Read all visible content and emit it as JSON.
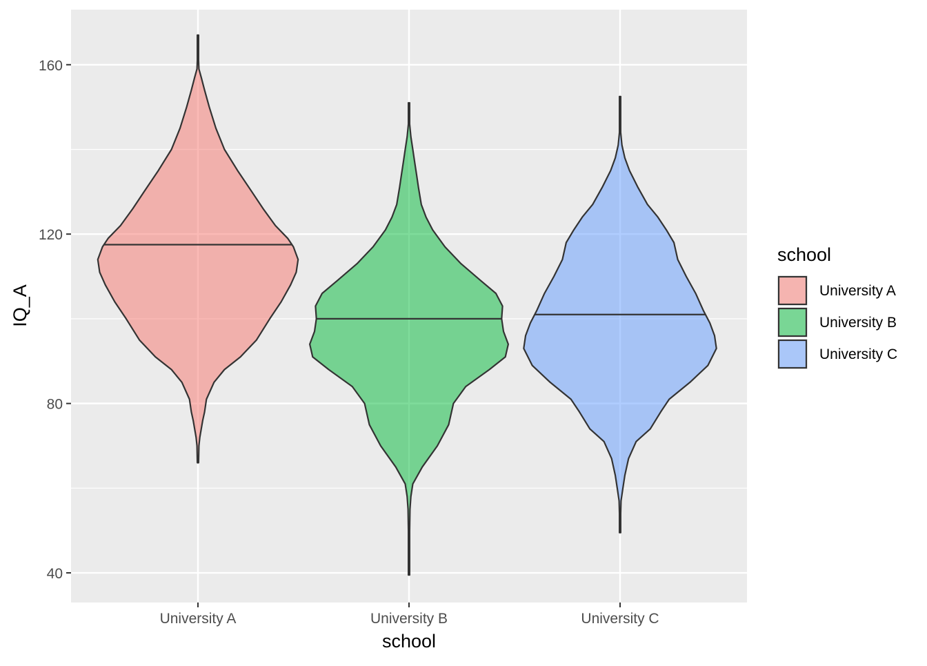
{
  "chart_data": {
    "type": "violin",
    "xlabel": "school",
    "ylabel": "IQ_A",
    "categories": [
      "University A",
      "University B",
      "University C"
    ],
    "ylim": [
      33,
      173
    ],
    "yticks": [
      40,
      80,
      120,
      160
    ],
    "grid": true,
    "legend": {
      "title": "school",
      "placement": "right",
      "entries": [
        "University A",
        "University B",
        "University C"
      ]
    },
    "colors": {
      "University A": "#F8766D",
      "University B": "#00BA38",
      "University C": "#619CFF"
    },
    "violins": [
      {
        "category": "University A",
        "median": 117.5,
        "min": 66,
        "max": 167,
        "profile": [
          [
            66,
            0.0
          ],
          [
            70,
            0.01
          ],
          [
            72,
            0.02
          ],
          [
            74,
            0.035
          ],
          [
            76,
            0.05
          ],
          [
            78,
            0.07
          ],
          [
            81,
            0.09
          ],
          [
            85,
            0.17
          ],
          [
            88,
            0.28
          ],
          [
            91,
            0.45
          ],
          [
            95,
            0.62
          ],
          [
            100,
            0.76
          ],
          [
            104,
            0.88
          ],
          [
            108,
            0.98
          ],
          [
            111,
            1.04
          ],
          [
            114,
            1.06
          ],
          [
            117,
            1.01
          ],
          [
            119,
            0.95
          ],
          [
            122,
            0.82
          ],
          [
            126,
            0.69
          ],
          [
            130,
            0.57
          ],
          [
            135,
            0.42
          ],
          [
            140,
            0.28
          ],
          [
            145,
            0.19
          ],
          [
            150,
            0.12
          ],
          [
            154,
            0.07
          ],
          [
            157,
            0.035
          ],
          [
            159,
            0.01
          ],
          [
            161,
            0.005
          ],
          [
            167,
            0.0
          ]
        ]
      },
      {
        "category": "University B",
        "median": 100,
        "min": 39.5,
        "max": 151,
        "profile": [
          [
            39.5,
            0.0
          ],
          [
            50,
            0.0
          ],
          [
            55,
            0.01
          ],
          [
            58,
            0.02
          ],
          [
            61,
            0.04
          ],
          [
            65,
            0.14
          ],
          [
            70,
            0.3
          ],
          [
            75,
            0.42
          ],
          [
            80,
            0.47
          ],
          [
            84,
            0.6
          ],
          [
            88,
            0.85
          ],
          [
            91,
            1.02
          ],
          [
            94,
            1.05
          ],
          [
            97,
            1.0
          ],
          [
            100,
            0.98
          ],
          [
            103,
            0.99
          ],
          [
            106,
            0.92
          ],
          [
            109,
            0.76
          ],
          [
            113,
            0.55
          ],
          [
            117,
            0.38
          ],
          [
            121,
            0.25
          ],
          [
            124,
            0.18
          ],
          [
            127,
            0.13
          ],
          [
            131,
            0.1
          ],
          [
            134,
            0.08
          ],
          [
            137,
            0.06
          ],
          [
            140,
            0.04
          ],
          [
            143,
            0.02
          ],
          [
            146,
            0.0
          ],
          [
            151,
            0.0
          ]
        ]
      },
      {
        "category": "University C",
        "median": 101,
        "min": 49.5,
        "max": 152.5,
        "profile": [
          [
            49.5,
            0.0
          ],
          [
            54,
            0.005
          ],
          [
            57,
            0.01
          ],
          [
            60,
            0.03
          ],
          [
            63,
            0.05
          ],
          [
            67,
            0.09
          ],
          [
            71,
            0.17
          ],
          [
            74,
            0.32
          ],
          [
            78,
            0.43
          ],
          [
            81,
            0.52
          ],
          [
            85,
            0.74
          ],
          [
            89,
            0.93
          ],
          [
            93,
            1.02
          ],
          [
            96,
            1.0
          ],
          [
            99,
            0.95
          ],
          [
            102,
            0.88
          ],
          [
            106,
            0.8
          ],
          [
            110,
            0.7
          ],
          [
            114,
            0.61
          ],
          [
            118,
            0.57
          ],
          [
            121,
            0.49
          ],
          [
            124,
            0.4
          ],
          [
            127,
            0.29
          ],
          [
            131,
            0.19
          ],
          [
            135,
            0.1
          ],
          [
            138,
            0.05
          ],
          [
            141,
            0.02
          ],
          [
            144,
            0.0
          ],
          [
            152.5,
            0.0
          ]
        ]
      }
    ]
  }
}
